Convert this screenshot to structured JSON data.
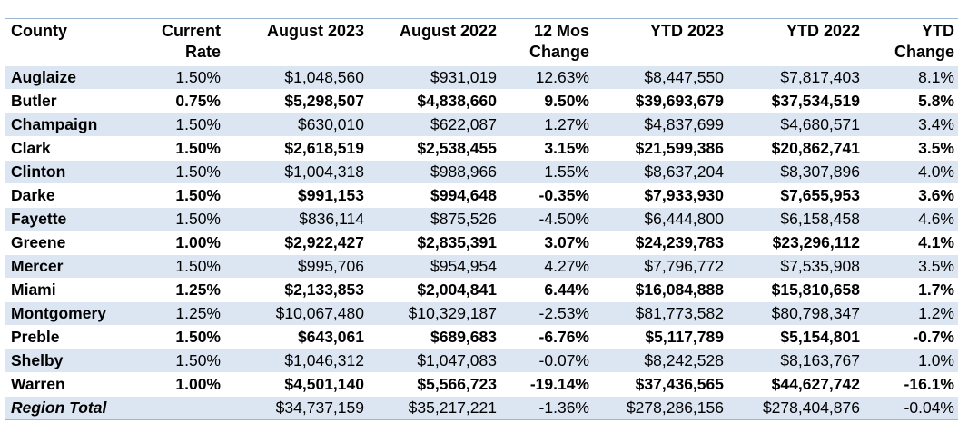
{
  "table": {
    "headers": [
      {
        "line1": "County",
        "line2": ""
      },
      {
        "line1": "Current",
        "line2": "Rate"
      },
      {
        "line1": "August 2023",
        "line2": ""
      },
      {
        "line1": "August 2022",
        "line2": ""
      },
      {
        "line1": "12 Mos",
        "line2": "Change"
      },
      {
        "line1": "YTD 2023",
        "line2": ""
      },
      {
        "line1": "YTD 2022",
        "line2": ""
      },
      {
        "line1": "YTD",
        "line2": "Change"
      }
    ],
    "rows": [
      {
        "county": "Auglaize",
        "rate": "1.50%",
        "aug2023": "$1,048,560",
        "aug2022": "$931,019",
        "change12": "12.63%",
        "ytd2023": "$8,447,550",
        "ytd2022": "$7,817,403",
        "ytdchange": "8.1%"
      },
      {
        "county": "Butler",
        "rate": "0.75%",
        "aug2023": "$5,298,507",
        "aug2022": "$4,838,660",
        "change12": "9.50%",
        "ytd2023": "$39,693,679",
        "ytd2022": "$37,534,519",
        "ytdchange": "5.8%"
      },
      {
        "county": "Champaign",
        "rate": "1.50%",
        "aug2023": "$630,010",
        "aug2022": "$622,087",
        "change12": "1.27%",
        "ytd2023": "$4,837,699",
        "ytd2022": "$4,680,571",
        "ytdchange": "3.4%"
      },
      {
        "county": "Clark",
        "rate": "1.50%",
        "aug2023": "$2,618,519",
        "aug2022": "$2,538,455",
        "change12": "3.15%",
        "ytd2023": "$21,599,386",
        "ytd2022": "$20,862,741",
        "ytdchange": "3.5%"
      },
      {
        "county": "Clinton",
        "rate": "1.50%",
        "aug2023": "$1,004,318",
        "aug2022": "$988,966",
        "change12": "1.55%",
        "ytd2023": "$8,637,204",
        "ytd2022": "$8,307,896",
        "ytdchange": "4.0%"
      },
      {
        "county": "Darke",
        "rate": "1.50%",
        "aug2023": "$991,153",
        "aug2022": "$994,648",
        "change12": "-0.35%",
        "ytd2023": "$7,933,930",
        "ytd2022": "$7,655,953",
        "ytdchange": "3.6%"
      },
      {
        "county": "Fayette",
        "rate": "1.50%",
        "aug2023": "$836,114",
        "aug2022": "$875,526",
        "change12": "-4.50%",
        "ytd2023": "$6,444,800",
        "ytd2022": "$6,158,458",
        "ytdchange": "4.6%"
      },
      {
        "county": "Greene",
        "rate": "1.00%",
        "aug2023": "$2,922,427",
        "aug2022": "$2,835,391",
        "change12": "3.07%",
        "ytd2023": "$24,239,783",
        "ytd2022": "$23,296,112",
        "ytdchange": "4.1%"
      },
      {
        "county": "Mercer",
        "rate": "1.50%",
        "aug2023": "$995,706",
        "aug2022": "$954,954",
        "change12": "4.27%",
        "ytd2023": "$7,796,772",
        "ytd2022": "$7,535,908",
        "ytdchange": "3.5%"
      },
      {
        "county": "Miami",
        "rate": "1.25%",
        "aug2023": "$2,133,853",
        "aug2022": "$2,004,841",
        "change12": "6.44%",
        "ytd2023": "$16,084,888",
        "ytd2022": "$15,810,658",
        "ytdchange": "1.7%"
      },
      {
        "county": "Montgomery",
        "rate": "1.25%",
        "aug2023": "$10,067,480",
        "aug2022": "$10,329,187",
        "change12": "-2.53%",
        "ytd2023": "$81,773,582",
        "ytd2022": "$80,798,347",
        "ytdchange": "1.2%"
      },
      {
        "county": "Preble",
        "rate": "1.50%",
        "aug2023": "$643,061",
        "aug2022": "$689,683",
        "change12": "-6.76%",
        "ytd2023": "$5,117,789",
        "ytd2022": "$5,154,801",
        "ytdchange": "-0.7%"
      },
      {
        "county": "Shelby",
        "rate": "1.50%",
        "aug2023": "$1,046,312",
        "aug2022": "$1,047,083",
        "change12": "-0.07%",
        "ytd2023": "$8,242,528",
        "ytd2022": "$8,163,767",
        "ytdchange": "1.0%"
      },
      {
        "county": "Warren",
        "rate": "1.00%",
        "aug2023": "$4,501,140",
        "aug2022": "$5,566,723",
        "change12": "-19.14%",
        "ytd2023": "$37,436,565",
        "ytd2022": "$44,627,742",
        "ytdchange": "-16.1%"
      }
    ],
    "total": {
      "county": "Region Total",
      "rate": "",
      "aug2023": "$34,737,159",
      "aug2022": "$35,217,221",
      "change12": "-1.36%",
      "ytd2023": "$278,286,156",
      "ytd2022": "$278,404,876",
      "ytdchange": "-0.04%"
    }
  },
  "colors": {
    "row_shade": "#dce6f2",
    "rule": "#9bb7d6"
  }
}
